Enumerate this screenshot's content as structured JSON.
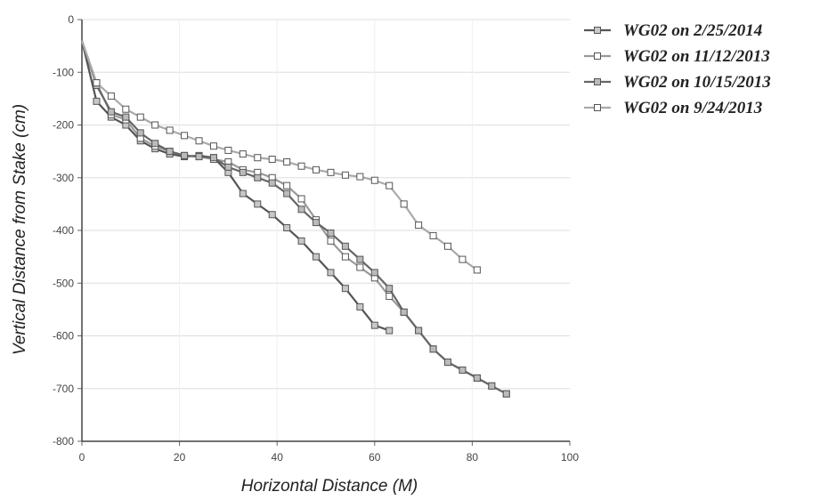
{
  "chart_data": {
    "type": "line",
    "title": "",
    "xlabel": "Horizontal Distance (M)",
    "ylabel": "Vertical Distance from Stake (cm)",
    "xlim": [
      0,
      100
    ],
    "ylim": [
      -800,
      0
    ],
    "x_ticks": [
      "0",
      "20",
      "40",
      "60",
      "80",
      "100"
    ],
    "y_ticks": [
      "0",
      "-100",
      "-200",
      "-300",
      "-400",
      "-500",
      "-600",
      "-700",
      "-800"
    ],
    "grid": "horizontal",
    "legend_position": "top-right",
    "series": [
      {
        "name": "WG02 on 2/25/2014",
        "color": "#555555",
        "marker_fill": "#c8c8c8",
        "points": [
          [
            0,
            -40
          ],
          [
            3,
            -155
          ],
          [
            6,
            -185
          ],
          [
            9,
            -200
          ],
          [
            12,
            -230
          ],
          [
            15,
            -245
          ],
          [
            18,
            -255
          ],
          [
            21,
            -260
          ],
          [
            24,
            -258
          ],
          [
            27,
            -262
          ],
          [
            30,
            -290
          ],
          [
            33,
            -330
          ],
          [
            36,
            -350
          ],
          [
            39,
            -370
          ],
          [
            42,
            -395
          ],
          [
            45,
            -420
          ],
          [
            48,
            -450
          ],
          [
            51,
            -480
          ],
          [
            54,
            -510
          ],
          [
            57,
            -545
          ],
          [
            60,
            -580
          ],
          [
            63,
            -590
          ]
        ]
      },
      {
        "name": "WG02 on 11/12/2013",
        "color": "#9a9a9a",
        "marker_fill": "#ffffff",
        "points": [
          [
            0,
            -40
          ],
          [
            3,
            -120
          ],
          [
            6,
            -180
          ],
          [
            9,
            -190
          ],
          [
            12,
            -225
          ],
          [
            15,
            -240
          ],
          [
            18,
            -250
          ],
          [
            21,
            -258
          ],
          [
            24,
            -260
          ],
          [
            27,
            -265
          ],
          [
            30,
            -270
          ],
          [
            33,
            -285
          ],
          [
            36,
            -290
          ],
          [
            39,
            -300
          ],
          [
            42,
            -315
          ],
          [
            45,
            -340
          ],
          [
            48,
            -380
          ],
          [
            51,
            -420
          ],
          [
            54,
            -450
          ],
          [
            57,
            -470
          ],
          [
            60,
            -490
          ],
          [
            63,
            -525
          ],
          [
            66,
            -555
          ],
          [
            69,
            -590
          ],
          [
            72,
            -625
          ],
          [
            75,
            -650
          ],
          [
            78,
            -665
          ],
          [
            81,
            -680
          ],
          [
            84,
            -695
          ],
          [
            87,
            -710
          ]
        ]
      },
      {
        "name": "WG02 on 10/15/2013",
        "color": "#666666",
        "marker_fill": "#bbbbbb",
        "points": [
          [
            0,
            -40
          ],
          [
            3,
            -125
          ],
          [
            6,
            -175
          ],
          [
            9,
            -185
          ],
          [
            12,
            -215
          ],
          [
            15,
            -235
          ],
          [
            18,
            -250
          ],
          [
            21,
            -258
          ],
          [
            24,
            -260
          ],
          [
            27,
            -262
          ],
          [
            30,
            -280
          ],
          [
            33,
            -290
          ],
          [
            36,
            -300
          ],
          [
            39,
            -310
          ],
          [
            42,
            -330
          ],
          [
            45,
            -360
          ],
          [
            48,
            -385
          ],
          [
            51,
            -405
          ],
          [
            54,
            -430
          ],
          [
            57,
            -455
          ],
          [
            60,
            -480
          ],
          [
            63,
            -510
          ],
          [
            66,
            -555
          ],
          [
            69,
            -590
          ],
          [
            72,
            -625
          ],
          [
            75,
            -650
          ],
          [
            78,
            -665
          ],
          [
            81,
            -680
          ],
          [
            84,
            -695
          ],
          [
            87,
            -710
          ]
        ]
      },
      {
        "name": "WG02 on 9/24/2013",
        "color": "#aaaaaa",
        "marker_fill": "#ffffff",
        "points": [
          [
            0,
            -40
          ],
          [
            3,
            -120
          ],
          [
            6,
            -145
          ],
          [
            9,
            -170
          ],
          [
            12,
            -185
          ],
          [
            15,
            -200
          ],
          [
            18,
            -210
          ],
          [
            21,
            -220
          ],
          [
            24,
            -230
          ],
          [
            27,
            -240
          ],
          [
            30,
            -248
          ],
          [
            33,
            -255
          ],
          [
            36,
            -262
          ],
          [
            39,
            -265
          ],
          [
            42,
            -270
          ],
          [
            45,
            -278
          ],
          [
            48,
            -285
          ],
          [
            51,
            -290
          ],
          [
            54,
            -295
          ],
          [
            57,
            -298
          ],
          [
            60,
            -305
          ],
          [
            63,
            -315
          ],
          [
            66,
            -350
          ],
          [
            69,
            -390
          ],
          [
            72,
            -410
          ],
          [
            75,
            -430
          ],
          [
            78,
            -455
          ],
          [
            81,
            -475
          ]
        ]
      }
    ]
  }
}
